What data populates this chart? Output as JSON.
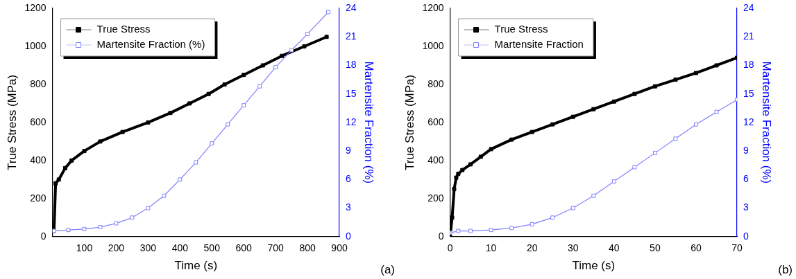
{
  "chart_data": [
    {
      "type": "line",
      "xlabel": "Time (s)",
      "ylabel": "True Stress (MPa)",
      "y2label": "Martensite Fraction (%)",
      "xlim": [
        0,
        900
      ],
      "xticks": [
        100,
        200,
        300,
        400,
        500,
        600,
        700,
        800,
        900
      ],
      "ylim": [
        0,
        1200
      ],
      "yticks": [
        0,
        200,
        400,
        600,
        800,
        1000,
        1200
      ],
      "y2lim": [
        0,
        24
      ],
      "y2ticks": [
        0,
        3,
        6,
        9,
        12,
        15,
        18,
        21,
        24
      ],
      "legend": "top left",
      "marker": "square",
      "grid": false,
      "annotations": [
        "(a)"
      ],
      "series": [
        {
          "name": "True Stress",
          "color": "#000000",
          "x": [
            5,
            10,
            20,
            40,
            60,
            100,
            150,
            220,
            300,
            370,
            430,
            490,
            540,
            600,
            660,
            720,
            790,
            860
          ],
          "values": [
            30,
            280,
            300,
            360,
            400,
            450,
            500,
            550,
            600,
            650,
            700,
            750,
            800,
            850,
            900,
            950,
            1000,
            1050
          ]
        },
        {
          "name": "Martensite Fraction (%)",
          "color": "#8080ff",
          "axis": "y2",
          "x": [
            5,
            50,
            100,
            150,
            200,
            250,
            300,
            350,
            400,
            450,
            500,
            550,
            600,
            650,
            700,
            750,
            800,
            865
          ],
          "values": [
            0.6,
            0.7,
            0.8,
            1,
            1.4,
            2,
            3,
            4.3,
            6,
            7.8,
            9.8,
            11.8,
            13.8,
            15.8,
            17.8,
            19.6,
            21.3,
            23.6
          ]
        }
      ]
    },
    {
      "type": "line",
      "xlabel": "Time (s)",
      "ylabel": "True Stress (MPa)",
      "y2label": "Martensite Fraction (%)",
      "xlim": [
        0,
        70
      ],
      "xticks": [
        0,
        10,
        20,
        30,
        40,
        50,
        60,
        70
      ],
      "ylim": [
        0,
        1200
      ],
      "yticks": [
        0,
        200,
        400,
        600,
        800,
        1000,
        1200
      ],
      "y2lim": [
        0,
        24
      ],
      "y2ticks": [
        0,
        3,
        6,
        9,
        12,
        15,
        18,
        21,
        24
      ],
      "legend": "top left",
      "marker": "square",
      "grid": false,
      "annotations": [
        "(b)"
      ],
      "series": [
        {
          "name": "True Stress",
          "color": "#000000",
          "x": [
            0,
            0.5,
            1,
            1.5,
            2,
            3,
            5,
            7.5,
            10,
            15,
            20,
            25,
            30,
            35,
            40,
            45,
            50,
            55,
            60,
            65,
            70
          ],
          "values": [
            0,
            100,
            250,
            310,
            330,
            350,
            380,
            420,
            460,
            510,
            550,
            590,
            630,
            670,
            710,
            750,
            790,
            825,
            860,
            900,
            940
          ]
        },
        {
          "name": "Martensite Fraction",
          "color": "#8080ff",
          "axis": "y2",
          "x": [
            0,
            2,
            5,
            10,
            15,
            20,
            25,
            30,
            35,
            40,
            45,
            50,
            55,
            60,
            65,
            70
          ],
          "values": [
            0.4,
            0.6,
            0.6,
            0.7,
            0.9,
            1.3,
            2,
            3,
            4.3,
            5.8,
            7.3,
            8.8,
            10.3,
            11.8,
            13.1,
            14.4
          ]
        }
      ]
    }
  ]
}
